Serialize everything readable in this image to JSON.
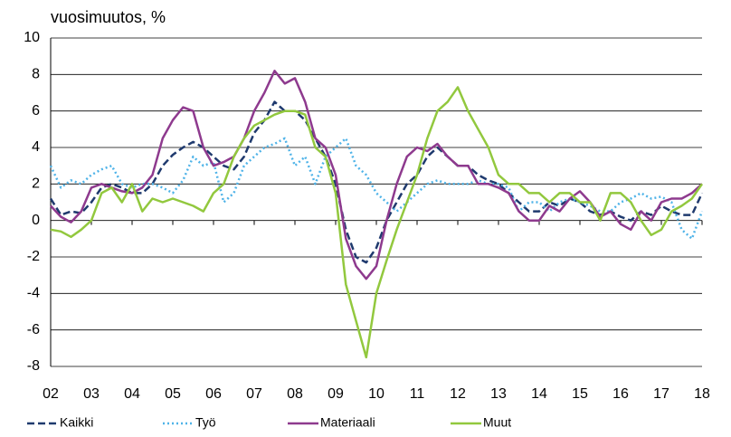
{
  "chart_data": {
    "type": "line",
    "title": "vuosimuutos, %",
    "categories": [
      "02",
      null,
      null,
      null,
      "03",
      null,
      null,
      null,
      "04",
      null,
      null,
      null,
      "05",
      null,
      null,
      null,
      "06",
      null,
      null,
      null,
      "07",
      null,
      null,
      null,
      "08",
      null,
      null,
      null,
      "09",
      null,
      null,
      null,
      "10",
      null,
      null,
      null,
      "11",
      null,
      null,
      null,
      "12",
      null,
      null,
      null,
      "13",
      null,
      null,
      null,
      "14",
      null,
      null,
      null,
      "15",
      null,
      null,
      null,
      "16",
      null,
      null,
      null,
      "17",
      null,
      null,
      null,
      "18"
    ],
    "series": [
      {
        "name": "Kaikki",
        "color": "#1f3a6e",
        "dash": "dashed",
        "values": [
          1.2,
          0.3,
          0.5,
          0.4,
          1.0,
          1.8,
          2.0,
          1.8,
          1.5,
          1.5,
          2.0,
          3.0,
          3.6,
          4.0,
          4.3,
          4.0,
          3.5,
          3.0,
          2.8,
          3.5,
          4.8,
          5.5,
          6.5,
          6.0,
          6.0,
          5.5,
          4.5,
          3.5,
          2.0,
          -0.5,
          -2.0,
          -2.3,
          -1.5,
          0,
          1.0,
          2.0,
          2.5,
          3.5,
          4.0,
          3.5,
          3.0,
          3.0,
          2.5,
          2.2,
          2.0,
          1.5,
          1.0,
          0.5,
          0.5,
          1.0,
          0.8,
          1.2,
          1.0,
          0.5,
          0.3,
          0.5,
          0.2,
          0.0,
          0.5,
          0.3,
          0.8,
          0.5,
          0.3,
          0.3,
          1.5
        ]
      },
      {
        "name": "Työ",
        "color": "#4fb3e8",
        "dash": "dotted",
        "values": [
          3.0,
          1.8,
          2.2,
          2.0,
          2.5,
          2.8,
          3.0,
          2.0,
          1.8,
          2.0,
          2.0,
          1.8,
          1.5,
          2.2,
          3.5,
          3.0,
          3.2,
          1.0,
          1.5,
          3.0,
          3.5,
          4.0,
          4.2,
          4.5,
          3.0,
          3.5,
          2.0,
          3.5,
          4.0,
          4.5,
          3.0,
          2.5,
          1.5,
          1.0,
          0.5,
          1.0,
          1.5,
          2.0,
          2.2,
          2.0,
          2.0,
          2.0,
          2.2,
          2.0,
          2.0,
          1.8,
          0.5,
          1.0,
          1.0,
          0.5,
          1.0,
          1.2,
          1.0,
          0.8,
          0.5,
          0.5,
          1.0,
          1.2,
          1.5,
          1.2,
          1.3,
          1.0,
          -0.5,
          -1.0,
          0.5
        ]
      },
      {
        "name": "Materiaali",
        "color": "#8e3a8e",
        "dash": "solid",
        "values": [
          0.8,
          0.2,
          -0.1,
          0.5,
          1.8,
          2.0,
          1.8,
          1.6,
          1.5,
          1.8,
          2.5,
          4.5,
          5.5,
          6.2,
          6.0,
          4.0,
          3.0,
          3.2,
          3.5,
          4.5,
          6.0,
          7.0,
          8.2,
          7.5,
          7.8,
          6.5,
          4.5,
          4.0,
          2.5,
          -1.0,
          -2.5,
          -3.2,
          -2.5,
          0,
          2.0,
          3.5,
          4.0,
          3.8,
          4.2,
          3.5,
          3.0,
          3.0,
          2.0,
          2.0,
          1.8,
          1.5,
          0.5,
          0.0,
          0.0,
          0.8,
          0.5,
          1.2,
          1.6,
          1.0,
          0.2,
          0.5,
          -0.2,
          -0.5,
          0.5,
          0.0,
          1.0,
          1.2,
          1.2,
          1.5,
          2.0
        ]
      },
      {
        "name": "Muut",
        "color": "#92c83e",
        "dash": "solid",
        "values": [
          -0.5,
          -0.6,
          -0.9,
          -0.5,
          0.0,
          1.5,
          1.8,
          1.0,
          2.0,
          0.5,
          1.2,
          1.0,
          1.2,
          1.0,
          0.8,
          0.5,
          1.5,
          2.0,
          3.5,
          4.5,
          5.2,
          5.5,
          5.8,
          6.0,
          6.0,
          5.8,
          4.0,
          3.5,
          1.5,
          -3.5,
          -5.5,
          -7.5,
          -4.0,
          -2.2,
          -0.5,
          1.0,
          2.5,
          4.5,
          6.0,
          6.5,
          7.3,
          6.0,
          5.0,
          4.0,
          2.5,
          2.0,
          2.0,
          1.5,
          1.5,
          1.0,
          1.5,
          1.5,
          1.0,
          1.0,
          0.0,
          1.5,
          1.5,
          1.0,
          0.0,
          -0.8,
          -0.5,
          0.5,
          0.8,
          1.2,
          2.0
        ]
      }
    ],
    "ylim": [
      -8,
      10
    ],
    "yticks": [
      -8,
      -6,
      -4,
      -2,
      0,
      2,
      4,
      6,
      8,
      10
    ],
    "grid": true
  }
}
